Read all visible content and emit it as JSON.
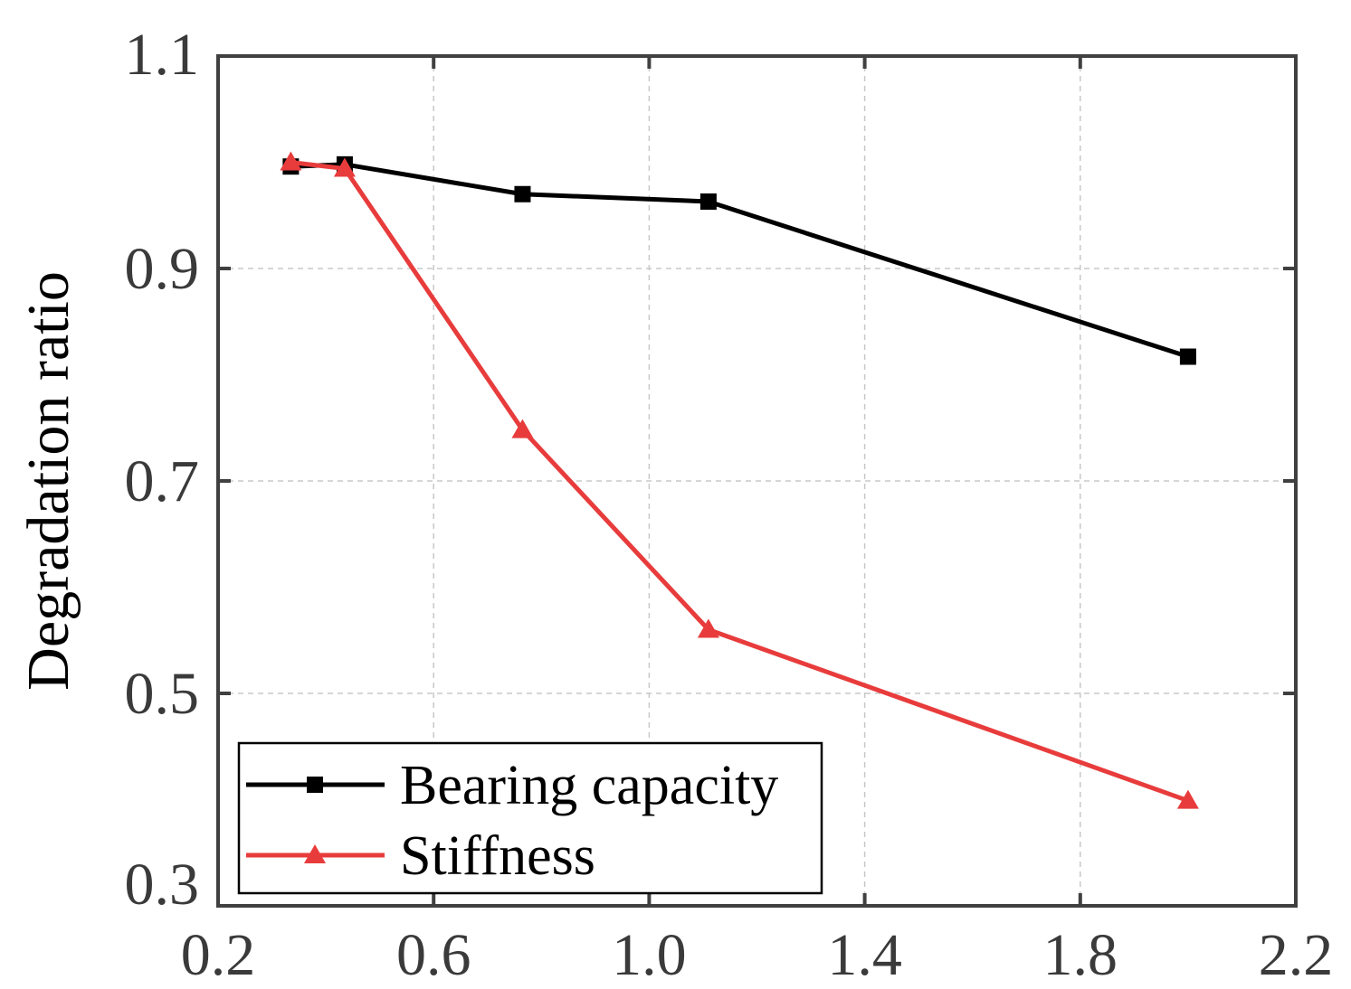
{
  "chart_data": {
    "type": "line",
    "title": "",
    "xlabel": "",
    "ylabel": "Degradation ratio",
    "xlim": [
      0.2,
      2.2
    ],
    "ylim": [
      0.3,
      1.1
    ],
    "xticks": [
      0.2,
      0.6,
      1.0,
      1.4,
      1.8,
      2.2
    ],
    "yticks": [
      0.3,
      0.5,
      0.7,
      0.9,
      1.1
    ],
    "xtick_labels": [
      "0.2",
      "0.6",
      "1.0",
      "1.4",
      "1.8",
      "2.2"
    ],
    "ytick_labels": [
      "0.3",
      "0.5",
      "0.7",
      "0.9",
      "1.1"
    ],
    "grid": true,
    "legend_position": "bottom-left",
    "series": [
      {
        "name": "Bearing capacity",
        "color": "#000000",
        "marker": "square",
        "x": [
          0.335,
          0.435,
          0.765,
          1.11,
          2.0
        ],
        "y": [
          0.996,
          0.998,
          0.97,
          0.963,
          0.817
        ]
      },
      {
        "name": "Stiffness",
        "color": "#e83c3c",
        "marker": "triangle",
        "x": [
          0.335,
          0.435,
          0.765,
          1.11,
          2.0
        ],
        "y": [
          1.0,
          0.994,
          0.748,
          0.56,
          0.399
        ]
      }
    ]
  }
}
